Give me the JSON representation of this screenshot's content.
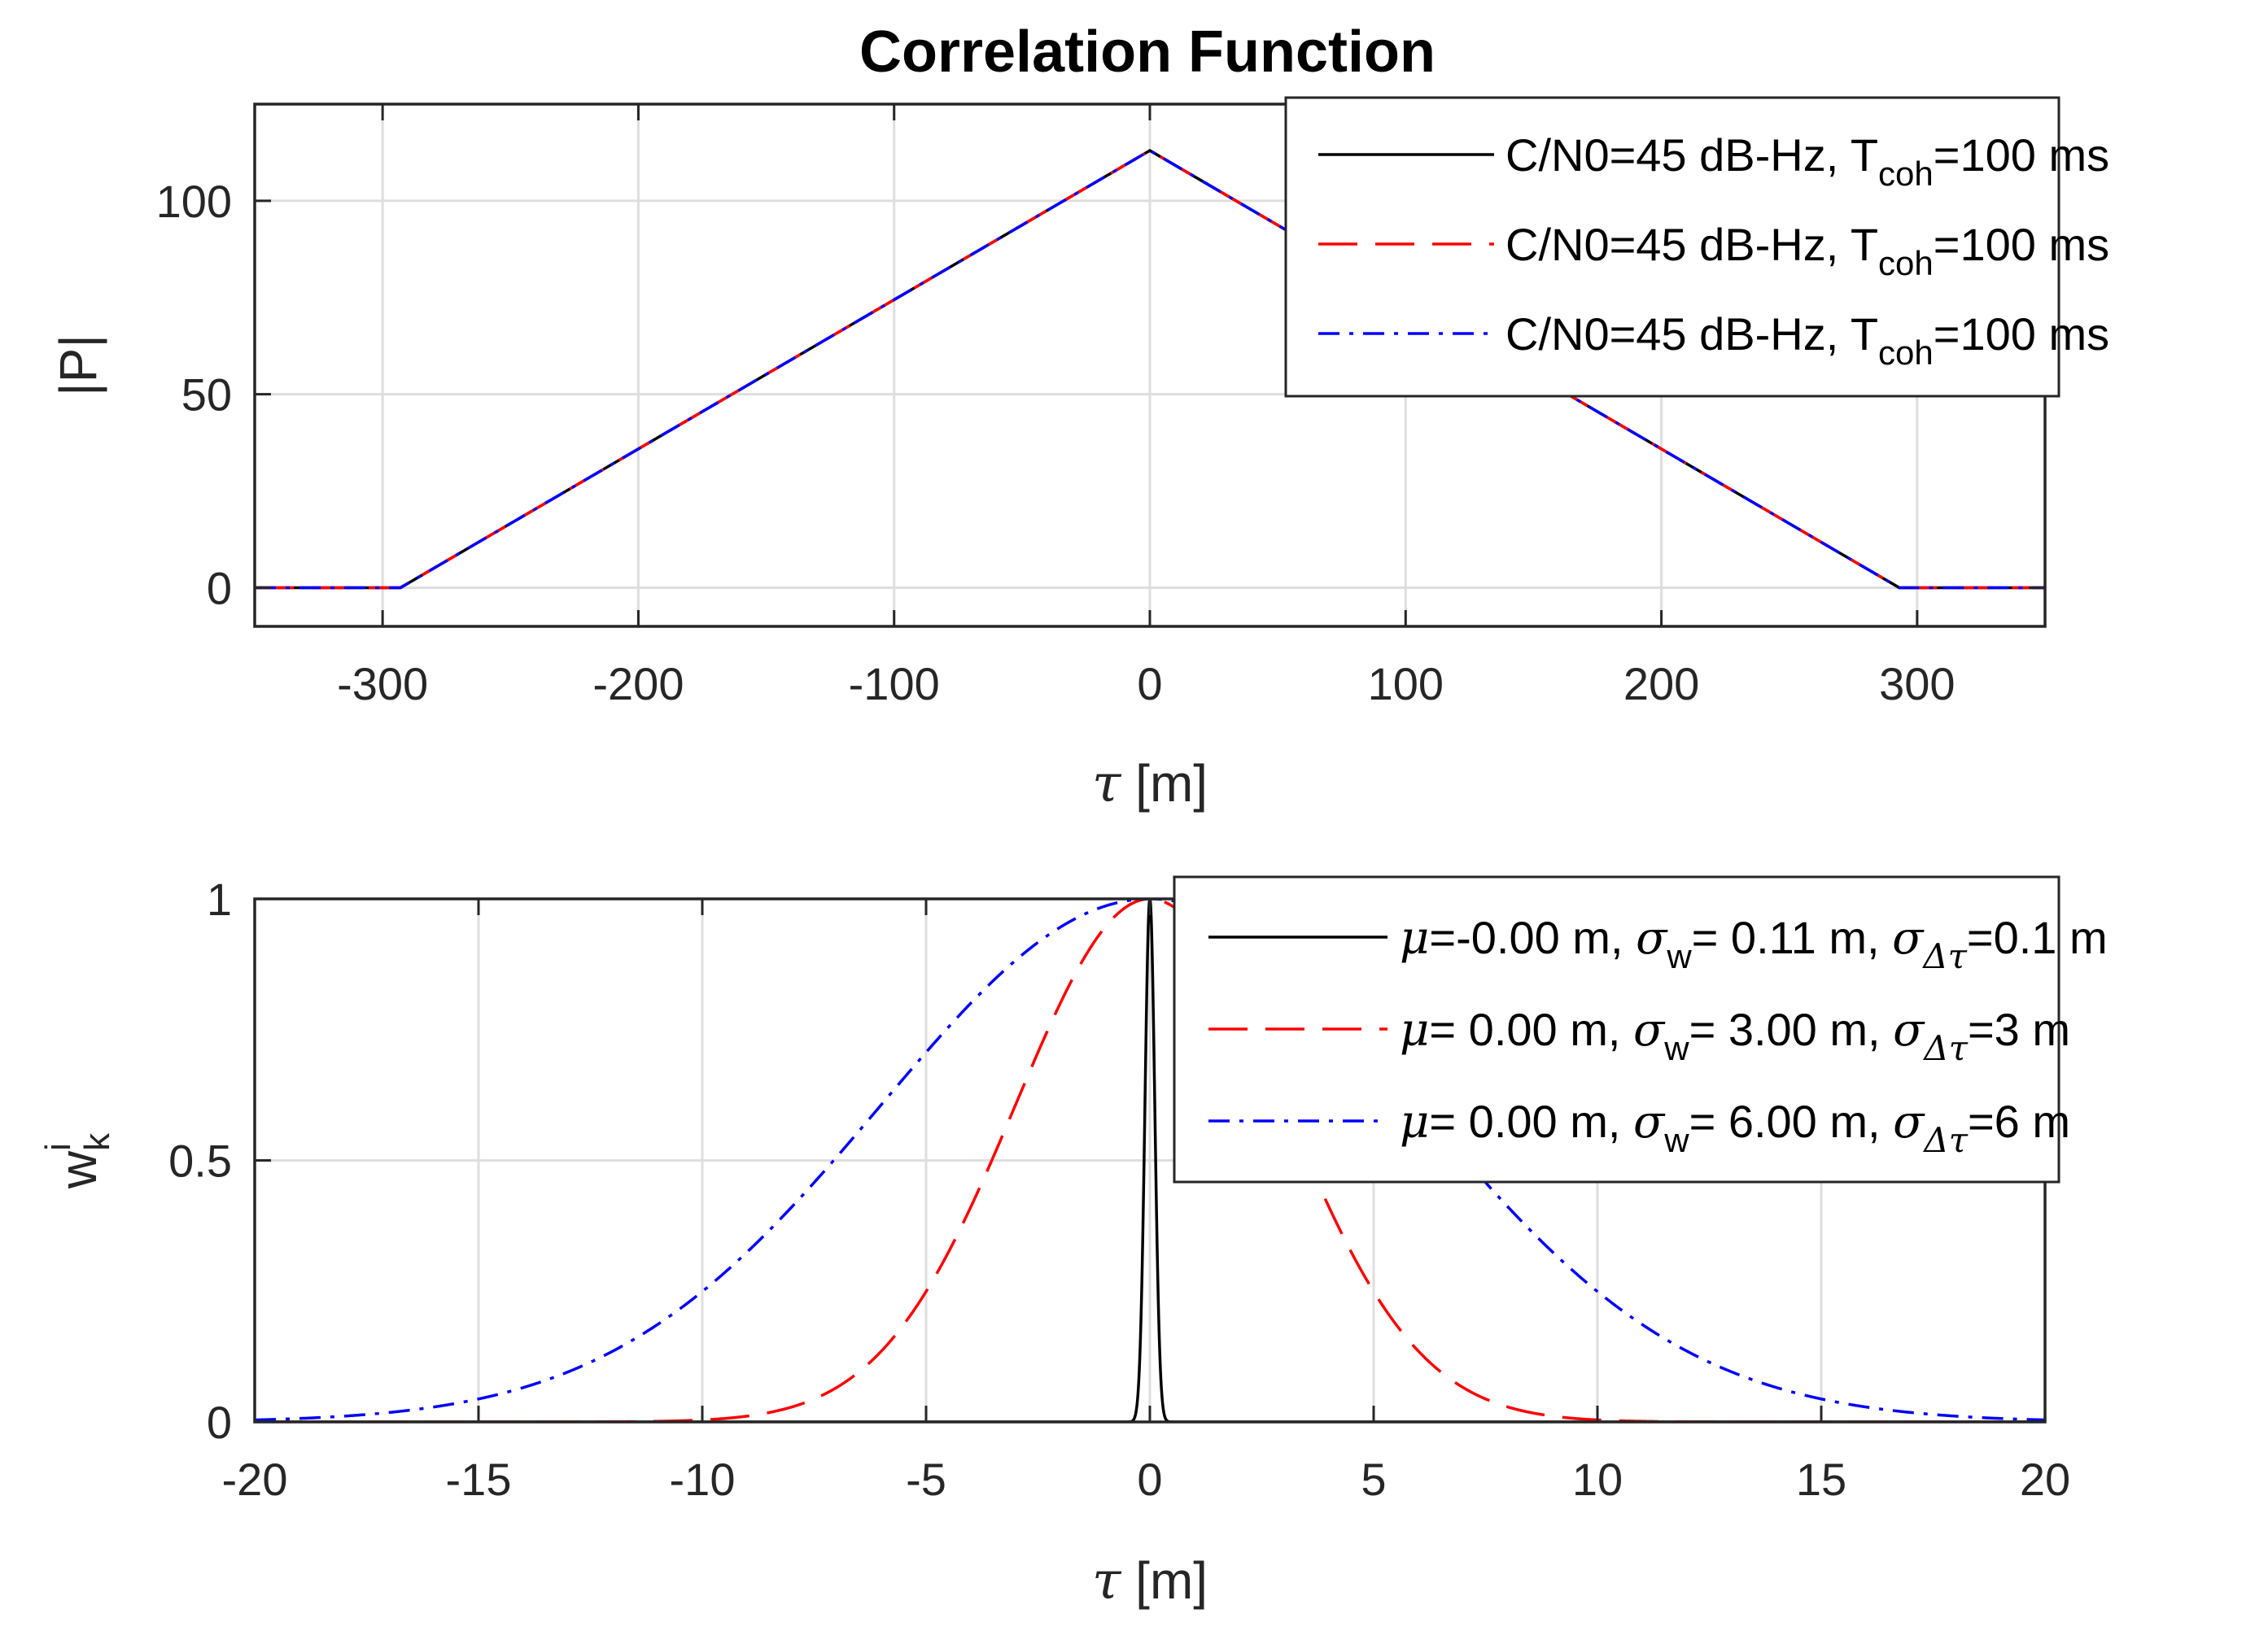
{
  "figure_title": "Correlation Function",
  "colors": {
    "black": "#000000",
    "red": "#ff0000",
    "blue": "#0000ff",
    "grid": "#dedede",
    "axis": "#262626"
  },
  "chart_data": [
    {
      "type": "line",
      "title": "Correlation Function",
      "xlabel": {
        "symbol": "τ",
        "unit": " [m]"
      },
      "ylabel": "|P|",
      "xlim": [
        -350,
        350
      ],
      "ylim": [
        -10,
        125
      ],
      "xticks": [
        -300,
        -200,
        -100,
        0,
        100,
        200,
        300
      ],
      "xtick_labels": [
        "-300",
        "-200",
        "-100",
        "0",
        "100",
        "200",
        "300"
      ],
      "yticks": [
        0,
        50,
        100
      ],
      "ytick_labels": [
        "0",
        "50",
        "100"
      ],
      "grid": true,
      "legend_position": "top-right",
      "series": [
        {
          "name": "C/N0=45 dB-Hz, T_coh=100 ms",
          "legend": {
            "pre": "C/N0=45 dB-Hz, T",
            "sub": "coh",
            "post": "=100 ms"
          },
          "color": "#000000",
          "style": "solid",
          "x": [
            -350,
            -293,
            0,
            293,
            350
          ],
          "y": [
            0,
            0,
            113,
            0,
            0
          ]
        },
        {
          "name": "C/N0=45 dB-Hz, T_coh=100 ms",
          "legend": {
            "pre": "C/N0=45 dB-Hz, T",
            "sub": "coh",
            "post": "=100 ms"
          },
          "color": "#ff0000",
          "style": "dashed",
          "x": [
            -350,
            -293,
            0,
            293,
            350
          ],
          "y": [
            0,
            0,
            113,
            0,
            0
          ]
        },
        {
          "name": "C/N0=45 dB-Hz, T_coh=100 ms",
          "legend": {
            "pre": "C/N0=45 dB-Hz, T",
            "sub": "coh",
            "post": "=100 ms"
          },
          "color": "#0000ff",
          "style": "dashdot",
          "x": [
            -350,
            -293,
            0,
            293,
            350
          ],
          "y": [
            0,
            0,
            113,
            0,
            0
          ]
        }
      ]
    },
    {
      "type": "line",
      "title": "",
      "xlabel": {
        "symbol": "τ",
        "unit": " [m]"
      },
      "ylabel": {
        "base": "w",
        "sub": "k",
        "sup": "i"
      },
      "xlim": [
        -20,
        20
      ],
      "ylim": [
        0,
        1
      ],
      "xticks": [
        -20,
        -15,
        -10,
        -5,
        0,
        5,
        10,
        15,
        20
      ],
      "xtick_labels": [
        "-20",
        "-15",
        "-10",
        "-5",
        "0",
        "5",
        "10",
        "15",
        "20"
      ],
      "yticks": [
        0,
        0.5,
        1
      ],
      "ytick_labels": [
        "0",
        "0.5",
        "1"
      ],
      "grid": true,
      "legend_position": "top-right",
      "series": [
        {
          "name": "μ=-0.00 m, σw= 0.11 m, σΔτ=0.1 m",
          "legend": {
            "mu": "μ",
            "muval": "=-0.00 m, ",
            "sw": "σ",
            "swsub": "w",
            "swval": "= 0.11 m, ",
            "sd": "σ",
            "sdsub": "Δτ",
            "sdval": "=0.1 m"
          },
          "color": "#000000",
          "style": "solid",
          "mu": 0.0,
          "sigma": 0.11
        },
        {
          "name": "μ= 0.00 m, σw= 3.00 m, σΔτ=3 m",
          "legend": {
            "mu": "μ",
            "muval": "= 0.00 m, ",
            "sw": "σ",
            "swsub": "w",
            "swval": "= 3.00 m, ",
            "sd": "σ",
            "sdsub": "Δτ",
            "sdval": "=3 m"
          },
          "color": "#ff0000",
          "style": "dashed",
          "mu": 0.0,
          "sigma": 3.0
        },
        {
          "name": "μ= 0.00 m, σw= 6.00 m, σΔτ=6 m",
          "legend": {
            "mu": "μ",
            "muval": "= 0.00 m, ",
            "sw": "σ",
            "swsub": "w",
            "swval": "= 6.00 m, ",
            "sd": "σ",
            "sdsub": "Δτ",
            "sdval": "=6 m"
          },
          "color": "#0000ff",
          "style": "dashdot",
          "mu": 0.0,
          "sigma": 6.0
        }
      ]
    }
  ]
}
